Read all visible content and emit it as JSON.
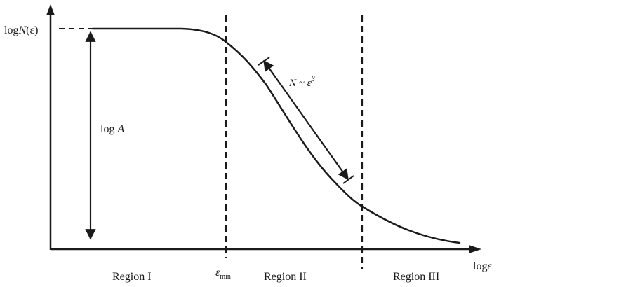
{
  "y_axis_label": {
    "prefix": "log",
    "italic": "N",
    "suffix": "(ε)"
  },
  "x_axis_label": {
    "prefix": "log",
    "suffix": "ε"
  },
  "vertical_annotation": {
    "prefix": "log ",
    "italic": "A"
  },
  "slope_annotation": {
    "lhs": "N ~ ε",
    "exponent": "β"
  },
  "epsilon_min": {
    "symbol": "ε",
    "subscript": "min"
  },
  "regions": [
    {
      "label": "Region I"
    },
    {
      "label": "Region II"
    },
    {
      "label": "Region III"
    }
  ],
  "colors": {
    "ink": "#1a1a1a",
    "background": "#ffffff"
  }
}
